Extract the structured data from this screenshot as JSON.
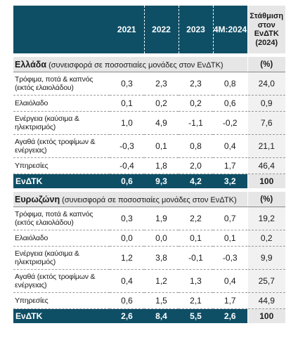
{
  "header": {
    "years": [
      "2021",
      "2022",
      "2023",
      "4M:2024"
    ],
    "weight_title": [
      "Στάθμιση",
      "στον",
      "ΕνΔΤΚ",
      "(2024)"
    ]
  },
  "sections": [
    {
      "title_bold": "Ελλάδα",
      "title_note": " (συνεισφορά σε ποσοστιαίες μονάδες στον ΕνΔΤΚ)",
      "unit": "(%)",
      "rows": [
        {
          "label": "Τρόφιμα, ποτά & καπνός (εκτός ελαιολάδου)",
          "values": [
            "0,3",
            "2,3",
            "2,3",
            "0,8"
          ],
          "weight": "24,0"
        },
        {
          "label": "Ελαιόλαδο",
          "values": [
            "0,1",
            "0,2",
            "0,2",
            "0,6"
          ],
          "weight": "0,9"
        },
        {
          "label": "Ενέργεια (καύσιμα & ηλεκτρισμός)",
          "values": [
            "1,0",
            "4,9",
            "-1,1",
            "-0,2"
          ],
          "weight": "7,6"
        },
        {
          "label": "Αγαθά (εκτός τροφίμων & ενέργειας)",
          "values": [
            "-0,3",
            "0,1",
            "0,8",
            "0,4"
          ],
          "weight": "21,1"
        },
        {
          "label": "Υπηρεσίες",
          "values": [
            "-0,4",
            "1,8",
            "2,0",
            "1,7"
          ],
          "weight": "46,4"
        }
      ],
      "total": {
        "label": "ΕνΔΤΚ",
        "values": [
          "0,6",
          "9,3",
          "4,2",
          "3,2"
        ],
        "weight": "100"
      }
    },
    {
      "title_bold": "Ευρωζώνη",
      "title_note": " (συνεισφορά σε ποσοστιαίες μονάδες στον ΕνΔΤΚ)",
      "unit": "(%)",
      "rows": [
        {
          "label": "Τρόφιμα, ποτά & καπνός (εκτός ελαιολάδου)",
          "values": [
            "0,3",
            "1,9",
            "2,2",
            "0,7"
          ],
          "weight": "19,2"
        },
        {
          "label": "Ελαιόλαδο",
          "values": [
            "0,0",
            "0,0",
            "0,1",
            "0,1"
          ],
          "weight": "0,2"
        },
        {
          "label": "Ενέργεια (καύσιμα & ηλεκτρισμός)",
          "values": [
            "1,2",
            "3,8",
            "-0,1",
            "-0,3"
          ],
          "weight": "9,9"
        },
        {
          "label": "Αγαθά (εκτός τροφίμων & ενέργειας)",
          "values": [
            "0,4",
            "1,2",
            "1,3",
            "0,4"
          ],
          "weight": "25,7"
        },
        {
          "label": "Υπηρεσίες",
          "values": [
            "0,6",
            "1,5",
            "2,1",
            "1,7"
          ],
          "weight": "44,9"
        }
      ],
      "total": {
        "label": "ΕνΔΤΚ",
        "values": [
          "2,6",
          "8,4",
          "5,5",
          "2,6"
        ],
        "weight": "100"
      }
    }
  ],
  "colors": {
    "header_bg": "#0f4f66",
    "section_bg": "#e6e6e6",
    "weight_bg": "#f1f1f1"
  }
}
